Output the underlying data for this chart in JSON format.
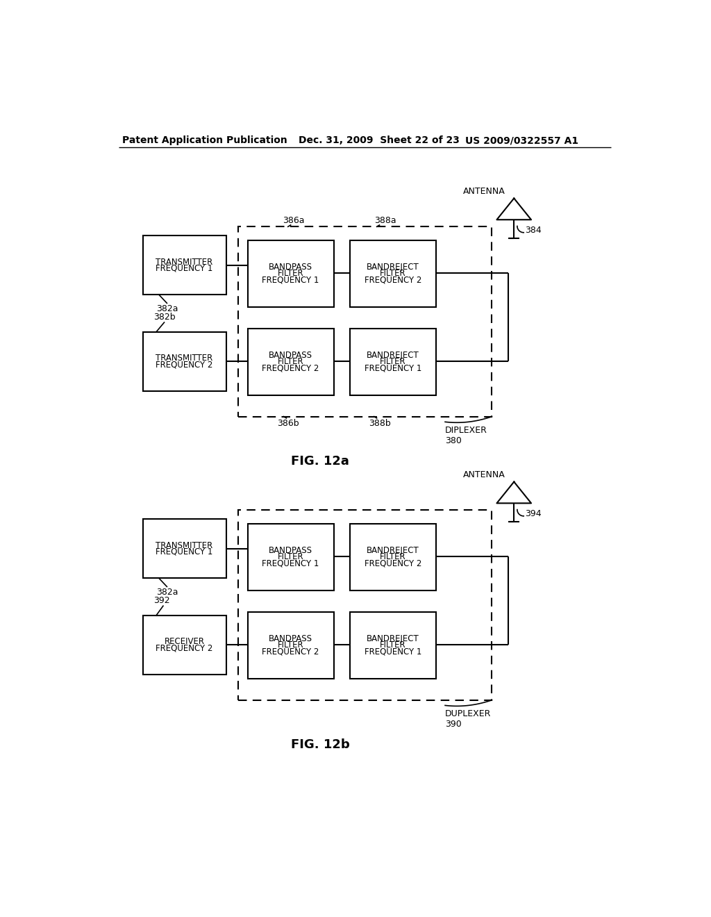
{
  "title_left": "Patent Application Publication",
  "title_mid": "Dec. 31, 2009  Sheet 22 of 23",
  "title_right": "US 2009/0322557 A1",
  "fig_a_label": "FIG. 12a",
  "fig_b_label": "FIG. 12b",
  "background_color": "#ffffff"
}
